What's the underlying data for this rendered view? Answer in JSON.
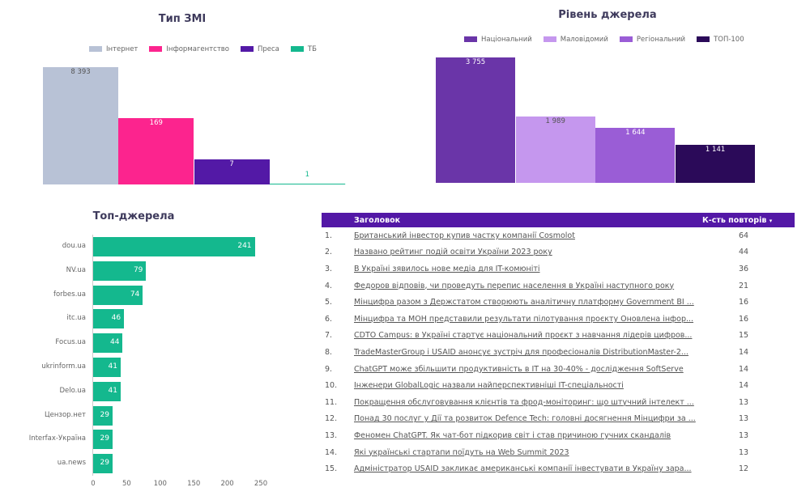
{
  "chart_data": [
    {
      "type": "bar",
      "title": "Тип ЗМІ",
      "scale": "log",
      "legend_position": "top",
      "grid": false,
      "categories": [
        "Інтернет",
        "Інформагентство",
        "Преса",
        "ТБ"
      ],
      "values": [
        8393,
        169,
        7,
        1
      ],
      "data_labels": [
        "8 393",
        "169",
        "7",
        "1"
      ],
      "colors": [
        "#b8c2d6",
        "#fc248e",
        "#5319a6",
        "#14b88e"
      ]
    },
    {
      "type": "bar",
      "title": "Рівень джерела",
      "legend_position": "top",
      "grid": false,
      "categories": [
        "Національний",
        "Маловідомий",
        "Регіональний",
        "ТОП-100"
      ],
      "values": [
        3755,
        1989,
        1644,
        1141
      ],
      "data_labels": [
        "3 755",
        "1 989",
        "1 644",
        "1 141"
      ],
      "colors": [
        "#6a35a8",
        "#c597ee",
        "#9a5dd6",
        "#2b0a59"
      ]
    },
    {
      "type": "bar",
      "orientation": "horizontal",
      "title": "Топ-джерела",
      "grid": false,
      "categories": [
        "dou.ua",
        "NV.ua",
        "forbes.ua",
        "itc.ua",
        "Focus.ua",
        "ukrinform.ua",
        "Delo.ua",
        "Цензор.нет",
        "Interfax-Україна",
        "ua.news"
      ],
      "values": [
        241,
        79,
        74,
        46,
        44,
        41,
        41,
        29,
        29,
        29
      ],
      "xlim": [
        0,
        250
      ],
      "xticks": [
        "0",
        "50",
        "100",
        "150",
        "200",
        "250"
      ],
      "color": "#14b88e"
    },
    {
      "type": "table",
      "columns": [
        "Заголовок",
        "К-сть повторів"
      ],
      "sort_indicator": "▾",
      "header_color": "#5318a6",
      "rows": [
        {
          "n": "1.",
          "title": "Британський інвестор купив частку компанії Cosmolot",
          "count": "64"
        },
        {
          "n": "2.",
          "title": "Названо рейтинг подій освіти України 2023 року",
          "count": "44"
        },
        {
          "n": "3.",
          "title": "В Україні зявилось нове медіа для IT-комюніті",
          "count": "36"
        },
        {
          "n": "4.",
          "title": "Федоров відповів, чи проведуть перепис населення в Україні наступного року",
          "count": "21"
        },
        {
          "n": "5.",
          "title": "Мінцифра разом з Держстатом створюють аналітичну платформу Government BI ...",
          "count": "16"
        },
        {
          "n": "6.",
          "title": "Мінцифра та МОН представили результати пілотування проєкту Оновлена інфор...",
          "count": "16"
        },
        {
          "n": "7.",
          "title": "CDTO Campus: в Україні стартує національний проєкт з навчання лідерів цифров...",
          "count": "15"
        },
        {
          "n": "8.",
          "title": "TradeMasterGroup і USAID анонсує зустріч для професіоналів DistributionMaster-2...",
          "count": "14"
        },
        {
          "n": "9.",
          "title": "ChatGPT може збільшити продуктивність в IT на 30-40% - дослідження SoftServe",
          "count": "14"
        },
        {
          "n": "10.",
          "title": "Інженери GlobalLogic назвали найперспективніші IT-спеціальності",
          "count": "14"
        },
        {
          "n": "11.",
          "title": "Покращення обслуговування клієнтів та фрод-моніторинг: що штучний інтелект ...",
          "count": "13"
        },
        {
          "n": "12.",
          "title": "Понад 30 послуг у Дії та розвиток Defence Tech: головні досягнення Мінцифри за ...",
          "count": "13"
        },
        {
          "n": "13.",
          "title": "Феномен ChatGPT. Як чат-бот підкорив світ і став причиною гучних скандалів",
          "count": "13"
        },
        {
          "n": "14.",
          "title": "Які українські стартапи поїдуть на Web Summit 2023",
          "count": "13"
        },
        {
          "n": "15.",
          "title": "Адміністратор USAID закликає американські компанії інвестувати в Україну зара...",
          "count": "12"
        }
      ]
    }
  ]
}
